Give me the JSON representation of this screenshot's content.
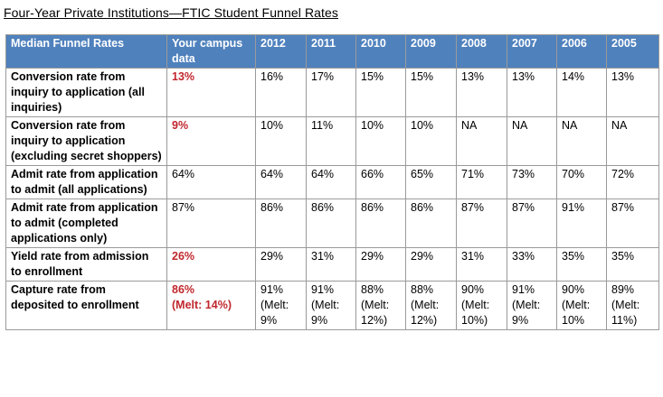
{
  "title": "Four-Year Private Institutions—FTIC Student Funnel Rates",
  "colors": {
    "header_bg": "#4f81bd",
    "header_text": "#ffffff",
    "highlight": "#c0272d",
    "border": "#9a9a9a"
  },
  "columns": {
    "metric": "Median Funnel Rates",
    "campus": "Your campus data",
    "years": [
      "2012",
      "2011",
      "2010",
      "2009",
      "2008",
      "2007",
      "2006",
      "2005"
    ]
  },
  "rows": [
    {
      "label": "Conversion rate from inquiry to application (all inquiries)",
      "campus": "13%",
      "campus_highlight": true,
      "values": [
        "16%",
        "17%",
        "15%",
        "15%",
        "13%",
        "13%",
        "14%",
        "13%"
      ]
    },
    {
      "label": "Conversion rate from inquiry to application (excluding secret shoppers)",
      "campus": "9%",
      "campus_highlight": true,
      "values": [
        "10%",
        "11%",
        "10%",
        "10%",
        "NA",
        "NA",
        "NA",
        "NA"
      ]
    },
    {
      "label": "Admit rate from application to admit (all applications)",
      "campus": "64%",
      "campus_highlight": false,
      "values": [
        "64%",
        "64%",
        "66%",
        "65%",
        "71%",
        "73%",
        "70%",
        "72%"
      ]
    },
    {
      "label": "Admit rate from application to admit (completed applications only)",
      "campus": "87%",
      "campus_highlight": false,
      "values": [
        "86%",
        "86%",
        "86%",
        "86%",
        "87%",
        "87%",
        "91%",
        "87%"
      ]
    },
    {
      "label": "Yield rate from admission to enrollment",
      "campus": "26%",
      "campus_highlight": true,
      "values": [
        "29%",
        "31%",
        "29%",
        "29%",
        "31%",
        "33%",
        "35%",
        "35%"
      ]
    },
    {
      "label": "Capture rate from deposited to enrollment",
      "campus": "86%",
      "campus_note": "(Melt: 14%)",
      "campus_highlight": true,
      "values": [
        "91%",
        "91%",
        "88%",
        "88%",
        "90%",
        "91%",
        "90%",
        "89%"
      ],
      "notes": [
        "(Melt: 9%",
        "(Melt: 9%",
        "(Melt: 12%)",
        "(Melt: 12%)",
        "(Melt: 10%)",
        "(Melt: 9%",
        "(Melt: 10%",
        "(Melt: 11%)"
      ]
    }
  ]
}
